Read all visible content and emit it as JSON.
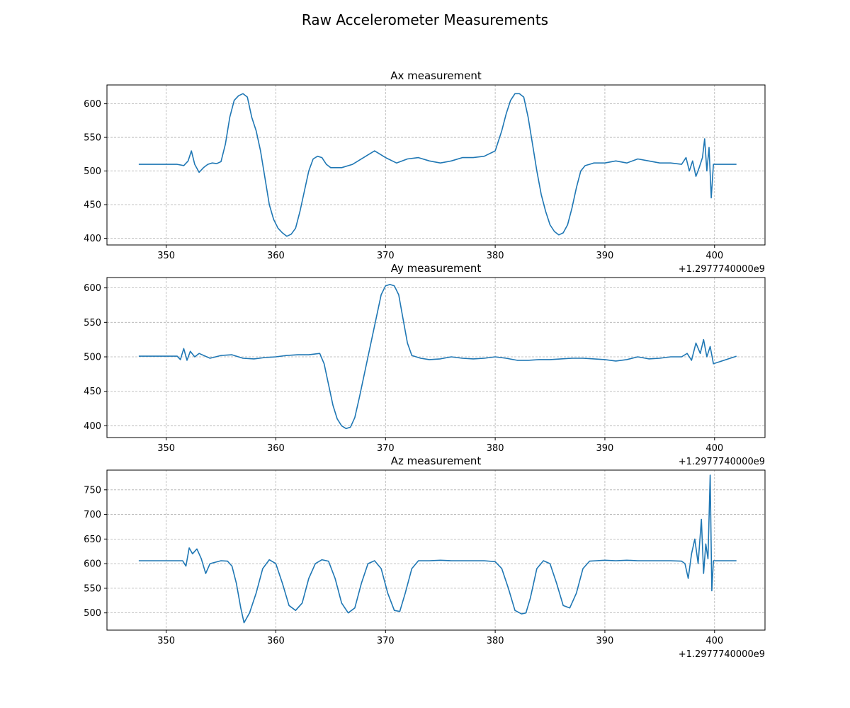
{
  "figure": {
    "title": "Raw Accelerometer Measurements"
  },
  "colors": {
    "line": "#1f77b4",
    "grid": "#b0b0b0",
    "axis": "#000000"
  },
  "chart_data": [
    {
      "type": "line",
      "title": "Ax measurement",
      "xlabel": "",
      "ylabel": "",
      "x_offset_label": "+1.2977740000e9",
      "xlim": [
        344.6,
        404.6
      ],
      "ylim": [
        390,
        628
      ],
      "xticks": [
        350,
        360,
        370,
        380,
        390,
        400
      ],
      "yticks": [
        400,
        450,
        500,
        550,
        600
      ],
      "grid": true,
      "series": [
        {
          "x": [
            347.5,
            351.0,
            351.6,
            352.0,
            352.3,
            352.6,
            353.0,
            353.4,
            353.8,
            354.2,
            354.6,
            355.0,
            355.4,
            355.8,
            356.2,
            356.6,
            357.0,
            357.4,
            357.8,
            358.2,
            358.6,
            359.0,
            359.4,
            359.8,
            360.2,
            360.6,
            361.0,
            361.4,
            361.8,
            362.2,
            362.6,
            363.0,
            363.4,
            363.8,
            364.2,
            364.6,
            365.0,
            366.0,
            367.0,
            368.0,
            369.0,
            370.0,
            371.0,
            372.0,
            373.0,
            374.0,
            375.0,
            376.0,
            377.0,
            378.0,
            379.0,
            380.0,
            380.6,
            381.0,
            381.4,
            381.8,
            382.2,
            382.6,
            383.0,
            383.4,
            383.8,
            384.2,
            384.6,
            385.0,
            385.4,
            385.8,
            386.2,
            386.6,
            387.0,
            387.4,
            387.8,
            388.2,
            388.6,
            389.0,
            390.0,
            391.0,
            392.0,
            393.0,
            394.0,
            395.0,
            396.0,
            397.0,
            397.4,
            397.7,
            398.0,
            398.3,
            398.6,
            398.9,
            399.1,
            399.3,
            399.5,
            399.7,
            399.9,
            400.2,
            402.0
          ],
          "y": [
            510,
            510,
            508,
            515,
            530,
            510,
            498,
            505,
            510,
            512,
            511,
            514,
            540,
            580,
            605,
            612,
            615,
            610,
            580,
            560,
            530,
            490,
            450,
            428,
            415,
            408,
            403,
            406,
            415,
            440,
            470,
            500,
            518,
            522,
            520,
            510,
            505,
            505,
            510,
            520,
            530,
            520,
            512,
            518,
            520,
            515,
            512,
            515,
            520,
            520,
            522,
            530,
            560,
            585,
            605,
            615,
            615,
            610,
            580,
            540,
            500,
            465,
            440,
            420,
            410,
            405,
            408,
            420,
            445,
            475,
            500,
            508,
            510,
            512,
            512,
            515,
            512,
            518,
            515,
            512,
            512,
            510,
            520,
            500,
            515,
            492,
            505,
            520,
            548,
            500,
            535,
            460,
            510,
            510,
            510
          ]
        }
      ]
    },
    {
      "type": "line",
      "title": "Ay measurement",
      "xlabel": "",
      "ylabel": "",
      "x_offset_label": "+1.2977740000e9",
      "xlim": [
        344.6,
        404.6
      ],
      "ylim": [
        383,
        615
      ],
      "xticks": [
        350,
        360,
        370,
        380,
        390,
        400
      ],
      "yticks": [
        400,
        450,
        500,
        550,
        600
      ],
      "grid": true,
      "series": [
        {
          "x": [
            347.5,
            351.0,
            351.3,
            351.6,
            351.9,
            352.2,
            352.6,
            353.0,
            354.0,
            355.0,
            356.0,
            357.0,
            358.0,
            359.0,
            360.0,
            361.0,
            362.0,
            363.0,
            364.0,
            364.4,
            364.8,
            365.2,
            365.6,
            366.0,
            366.4,
            366.8,
            367.2,
            367.6,
            368.0,
            368.4,
            368.8,
            369.2,
            369.6,
            370.0,
            370.4,
            370.8,
            371.2,
            371.6,
            372.0,
            372.4,
            372.8,
            373.2,
            374.0,
            375.0,
            376.0,
            377.0,
            378.0,
            379.0,
            380.0,
            381.0,
            382.0,
            383.0,
            384.0,
            385.0,
            386.0,
            387.0,
            388.0,
            389.0,
            390.0,
            391.0,
            392.0,
            393.0,
            394.0,
            395.0,
            396.0,
            397.0,
            397.5,
            397.9,
            398.3,
            398.7,
            399.0,
            399.3,
            399.6,
            399.9,
            402.0
          ],
          "y": [
            501,
            501,
            496,
            512,
            495,
            508,
            500,
            505,
            498,
            502,
            503,
            498,
            497,
            499,
            500,
            502,
            503,
            503,
            505,
            490,
            460,
            430,
            410,
            400,
            396,
            398,
            412,
            440,
            470,
            500,
            530,
            560,
            590,
            603,
            605,
            603,
            590,
            555,
            520,
            502,
            500,
            498,
            496,
            497,
            500,
            498,
            497,
            498,
            500,
            498,
            495,
            495,
            496,
            496,
            497,
            498,
            498,
            497,
            496,
            494,
            496,
            500,
            497,
            498,
            500,
            500,
            505,
            495,
            520,
            505,
            525,
            500,
            515,
            490,
            501
          ]
        }
      ]
    },
    {
      "type": "line",
      "title": "Az measurement",
      "xlabel": "",
      "ylabel": "",
      "x_offset_label": "+1.2977740000e9",
      "xlim": [
        344.6,
        404.6
      ],
      "ylim": [
        465,
        790
      ],
      "xticks": [
        350,
        360,
        370,
        380,
        390,
        400
      ],
      "yticks": [
        500,
        550,
        600,
        650,
        700,
        750
      ],
      "grid": true,
      "series": [
        {
          "x": [
            347.5,
            351.5,
            351.8,
            352.1,
            352.4,
            352.8,
            353.2,
            353.6,
            354.0,
            355.0,
            355.6,
            356.0,
            356.4,
            356.8,
            357.1,
            357.6,
            358.2,
            358.8,
            359.4,
            360.0,
            360.6,
            361.2,
            361.8,
            362.4,
            363.0,
            363.6,
            364.2,
            364.8,
            365.4,
            366.0,
            366.6,
            367.2,
            367.8,
            368.4,
            369.0,
            369.6,
            370.2,
            370.8,
            371.3,
            371.8,
            372.4,
            373.0,
            374.0,
            375.0,
            376.0,
            377.0,
            378.0,
            379.0,
            380.0,
            380.6,
            381.2,
            381.8,
            382.4,
            382.8,
            383.2,
            383.8,
            384.4,
            385.0,
            385.6,
            386.2,
            386.8,
            387.4,
            388.0,
            388.6,
            389.2,
            390.0,
            391.0,
            392.0,
            393.0,
            394.0,
            395.0,
            396.0,
            397.0,
            397.3,
            397.6,
            397.9,
            398.2,
            398.5,
            398.8,
            399.0,
            399.2,
            399.4,
            399.6,
            399.75,
            399.9,
            400.2,
            402.0
          ],
          "y": [
            606,
            606,
            595,
            632,
            620,
            630,
            610,
            580,
            600,
            606,
            605,
            595,
            560,
            510,
            480,
            500,
            540,
            590,
            608,
            600,
            560,
            515,
            505,
            520,
            570,
            600,
            608,
            605,
            570,
            520,
            500,
            510,
            560,
            600,
            606,
            590,
            540,
            505,
            503,
            540,
            590,
            606,
            606,
            607,
            606,
            606,
            606,
            606,
            604,
            590,
            550,
            505,
            498,
            500,
            530,
            590,
            606,
            600,
            560,
            515,
            510,
            540,
            590,
            605,
            606,
            607,
            606,
            607,
            606,
            606,
            606,
            606,
            605,
            600,
            570,
            620,
            650,
            600,
            690,
            580,
            640,
            610,
            780,
            545,
            606,
            606,
            606
          ]
        }
      ]
    }
  ]
}
